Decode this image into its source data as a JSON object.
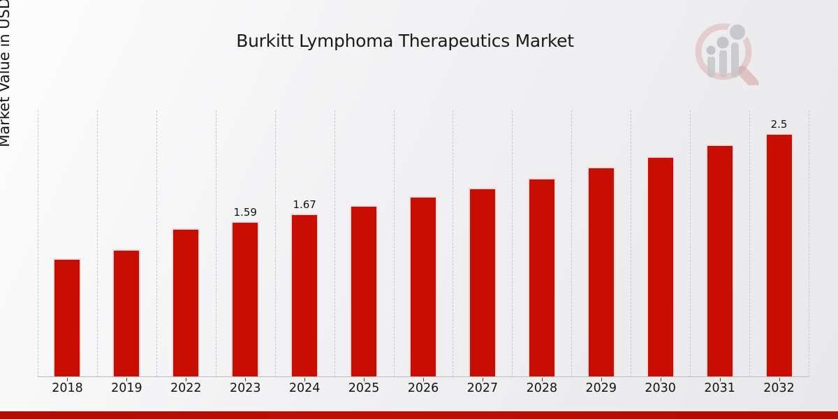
{
  "chart_data": {
    "type": "bar",
    "title": "Burkitt Lymphoma Therapeutics Market",
    "ylabel": "Market Value in USD Billion",
    "xlabel": "",
    "categories": [
      "2018",
      "2019",
      "2022",
      "2023",
      "2024",
      "2025",
      "2026",
      "2027",
      "2028",
      "2029",
      "2030",
      "2031",
      "2032"
    ],
    "values": [
      1.21,
      1.3,
      1.52,
      1.59,
      1.67,
      1.76,
      1.85,
      1.94,
      2.04,
      2.15,
      2.26,
      2.38,
      2.5
    ],
    "data_labels": [
      "",
      "",
      "",
      "1.59",
      "1.67",
      "",
      "",
      "",
      "",
      "",
      "",
      "",
      "2.5"
    ],
    "ylim": [
      0,
      2.75
    ],
    "grid": "vertical-dashed",
    "legend": "none",
    "bar_color": "#c80d02",
    "accent_strip_color": "#b30d02",
    "gridline_color": "#c7c7c9",
    "text_color": "#1a1a1a"
  },
  "logo": {
    "icon": "magnifier-bar-chart-watermark",
    "ring_color": "#d8a7a7",
    "bar_color": "#c5c5c9"
  }
}
